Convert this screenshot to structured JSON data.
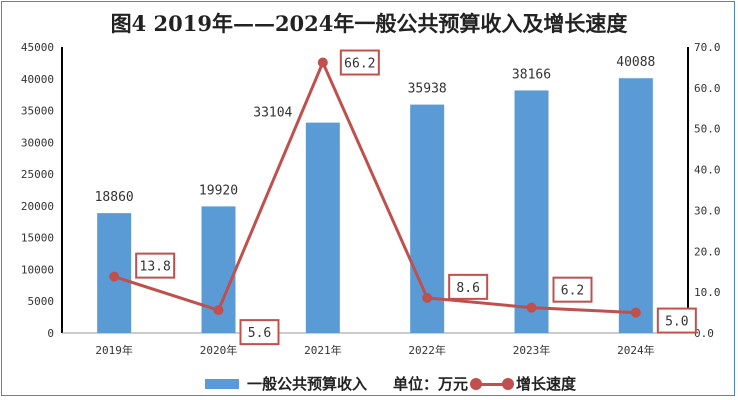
{
  "chart_data": {
    "type": "bar+line",
    "title": "图4   2019年——2024年一般公共预算收入及增长速度",
    "categories": [
      "2019年",
      "2020年",
      "2021年",
      "2022年",
      "2023年",
      "2024年"
    ],
    "series": [
      {
        "name": "一般公共预算收入",
        "type": "bar",
        "axis": "left",
        "color": "#5b9bd5",
        "values": [
          18860,
          19920,
          33104,
          35938,
          38166,
          40088
        ]
      },
      {
        "name": "增长速度",
        "type": "line",
        "axis": "right",
        "color": "#c0504d",
        "values": [
          13.8,
          5.6,
          66.2,
          8.6,
          6.2,
          5.0
        ]
      }
    ],
    "left_axis": {
      "ylim": [
        0,
        45000
      ],
      "ticks": [
        0,
        5000,
        10000,
        15000,
        20000,
        25000,
        30000,
        35000,
        40000,
        45000
      ]
    },
    "right_axis": {
      "ylim": [
        0,
        70
      ],
      "ticks": [
        "0.0",
        "10.0",
        "20.0",
        "30.0",
        "40.0",
        "50.0",
        "60.0",
        "70.0"
      ]
    },
    "line_labels": [
      "13.8",
      "5.6",
      "66.2",
      "8.6",
      "6.2",
      "5.0"
    ],
    "unit_note": "单位：万元",
    "legend_position": "bottom",
    "grid": false
  }
}
